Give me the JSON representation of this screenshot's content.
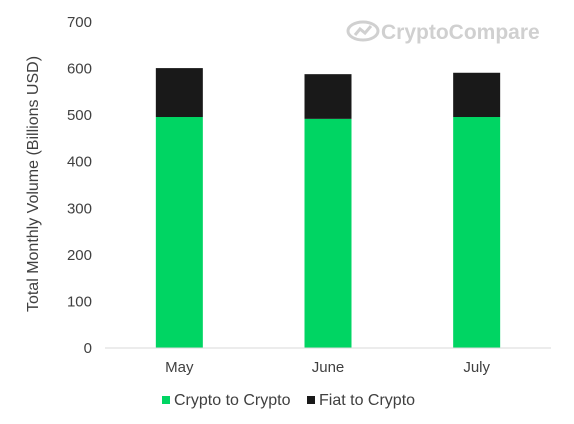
{
  "watermark": {
    "text": "CryptoCompare",
    "icon": "cryptocompare-logo-icon"
  },
  "chart_data": {
    "type": "bar",
    "stacked": true,
    "categories": [
      "May",
      "June",
      "July"
    ],
    "series": [
      {
        "name": "Crypto to Crypto",
        "values": [
          496,
          492,
          496
        ],
        "color": "#00d563"
      },
      {
        "name": "Fiat to Crypto",
        "values": [
          105,
          96,
          95
        ],
        "color": "#191919"
      }
    ],
    "ylabel": "Total Monthly Volume (Billions USD)",
    "xlabel": "",
    "ylim": [
      0,
      700
    ],
    "yticks": [
      0,
      100,
      200,
      300,
      400,
      500,
      600,
      700
    ],
    "grid": false,
    "legend": "bottom"
  }
}
